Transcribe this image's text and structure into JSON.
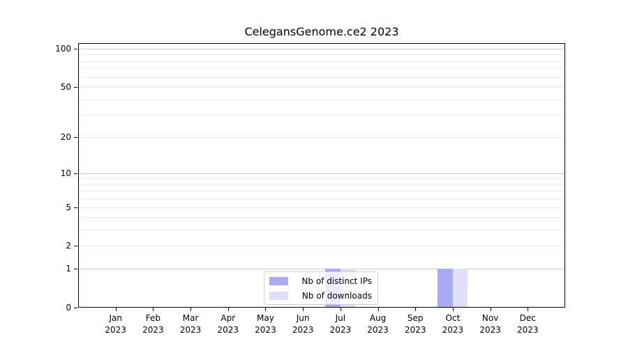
{
  "title": "CelegansGenome.ce2 2023",
  "chart_data": {
    "type": "bar",
    "title": "CelegansGenome.ce2 2023",
    "xlabel": "",
    "ylabel": "",
    "categories": [
      "Jan",
      "Feb",
      "Mar",
      "Apr",
      "May",
      "Jun",
      "Jul",
      "Aug",
      "Sep",
      "Oct",
      "Nov",
      "Dec"
    ],
    "category_year": "2023",
    "series": [
      {
        "name": "Nb of distinct IPs",
        "color": "#a9a9f4",
        "values": [
          0,
          0,
          0,
          0,
          0,
          0,
          1,
          0,
          0,
          1,
          0,
          0
        ]
      },
      {
        "name": "Nb of downloads",
        "color": "#dedefb",
        "values": [
          0,
          0,
          0,
          0,
          0,
          0,
          1,
          0,
          0,
          1,
          0,
          0
        ]
      }
    ],
    "yscale": "log1p",
    "ylim": [
      0,
      110.5
    ],
    "yticks_labeled": [
      0,
      1,
      2,
      5,
      10,
      20,
      50,
      100
    ],
    "yticks_minor": [
      3,
      4,
      6,
      7,
      8,
      9,
      30,
      40,
      60,
      70,
      80,
      90
    ],
    "ygrid_decade_ticks": [
      1,
      10,
      100
    ],
    "grid": "horizontal",
    "legend_position": "lower center inside"
  },
  "legend": {
    "items": [
      {
        "label": "Nb of distinct IPs",
        "color": "#a9a9f4"
      },
      {
        "label": "Nb of downloads",
        "color": "#dedefb"
      }
    ]
  },
  "colors": {
    "background": "#ffffff",
    "axis": "#000000",
    "grid_decade": "#c9c9c9",
    "grid_level": "#e6e6e6",
    "grid_minor": "#ececec",
    "bar_distinct_ips": "#a9a9f4",
    "bar_downloads": "#dedefb"
  }
}
